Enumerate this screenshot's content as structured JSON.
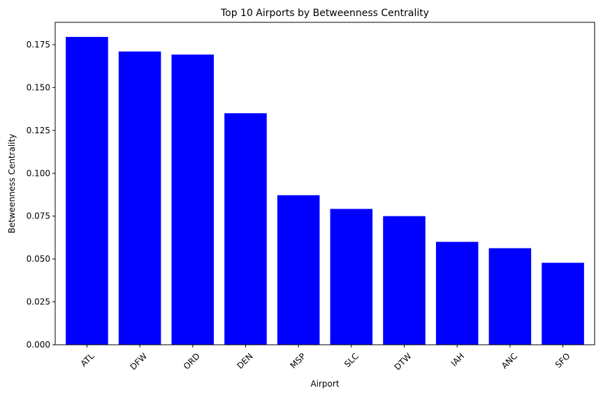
{
  "chart_data": {
    "type": "bar",
    "title": "Top 10 Airports by Betweenness Centrality",
    "xlabel": "Airport",
    "ylabel": "Betweenness Centrality",
    "categories": [
      "ATL",
      "DFW",
      "ORD",
      "DEN",
      "MSP",
      "SLC",
      "DTW",
      "IAH",
      "ANC",
      "SFO"
    ],
    "values": [
      0.1795,
      0.171,
      0.1692,
      0.135,
      0.0872,
      0.0792,
      0.075,
      0.06,
      0.0563,
      0.0478
    ],
    "ylim": [
      0,
      0.188
    ],
    "yticks": [
      0.0,
      0.025,
      0.05,
      0.075,
      0.1,
      0.125,
      0.15,
      0.175
    ],
    "ytick_labels": [
      "0.000",
      "0.025",
      "0.050",
      "0.075",
      "0.100",
      "0.125",
      "0.150",
      "0.175"
    ],
    "bar_color": "#0000ff",
    "grid": false,
    "legend": "none"
  }
}
